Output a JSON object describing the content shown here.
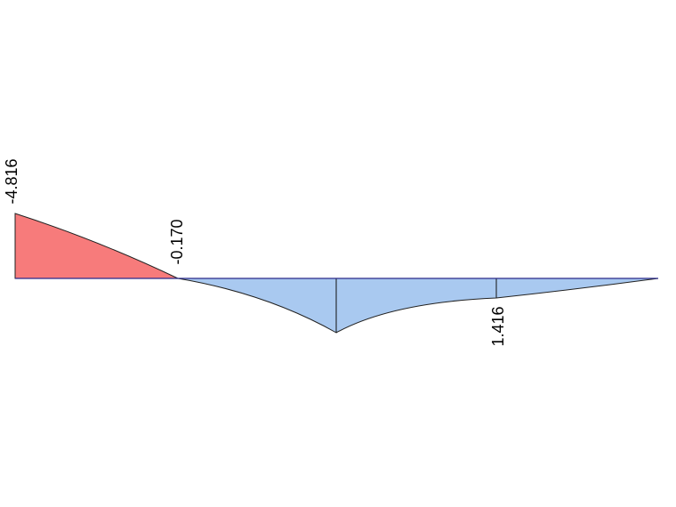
{
  "labels": [
    "-4.816",
    "-0.170",
    "1.416"
  ]
}
